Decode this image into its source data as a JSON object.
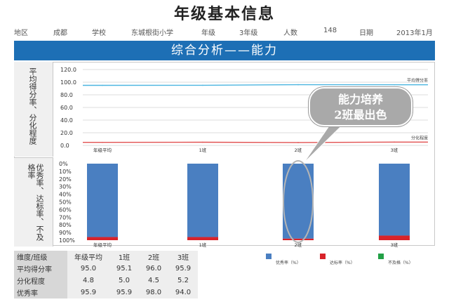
{
  "page": {
    "title": "年级基本信息"
  },
  "info": [
    {
      "label": "地区",
      "value": "成都"
    },
    {
      "label": "学校",
      "value": "东城根街小学"
    },
    {
      "label": "年级",
      "value": "3年级"
    },
    {
      "label": "人数",
      "value": "148"
    },
    {
      "label": "日期",
      "value": "2013年1月"
    }
  ],
  "banner": {
    "text": "综合分析——能力"
  },
  "side_labels": {
    "top": "平均得分率、分化程度",
    "bottom": "优秀率、达标率、不及格率"
  },
  "callout": {
    "line1": "能力培养",
    "line2": "2班最出色"
  },
  "colors": {
    "blue": "#4a7fc1",
    "red": "#d8232a",
    "green": "#22a046",
    "line_avg": "#4bb5e0",
    "line_div": "#e15050",
    "banner": "#1d6fb5"
  },
  "chart_data": [
    {
      "type": "line",
      "categories": [
        "年级平均",
        "1班",
        "2班",
        "3班"
      ],
      "ylim": [
        0,
        120
      ],
      "yticks": [
        "0.0",
        "20.0",
        "40.0",
        "60.0",
        "80.0",
        "100.0",
        "120.0"
      ],
      "series": [
        {
          "name": "平均得分率",
          "values": [
            95.0,
            95.1,
            96.0,
            95.9
          ]
        },
        {
          "name": "分化程度",
          "values": [
            4.8,
            5.0,
            4.5,
            5.2
          ]
        }
      ]
    },
    {
      "type": "bar",
      "stacked": true,
      "categories": [
        "年级平均",
        "1班",
        "2班",
        "3班"
      ],
      "ylim": [
        0,
        100
      ],
      "yticks": [
        "0%",
        "10%",
        "20%",
        "30%",
        "40%",
        "50%",
        "60%",
        "70%",
        "80%",
        "90%",
        "100%"
      ],
      "series": [
        {
          "name": "优秀率（%）",
          "values": [
            95.9,
            95.9,
            98.0,
            94.0
          ]
        },
        {
          "name": "达标率（%）",
          "values": [
            4.1,
            4.1,
            2.0,
            6.0
          ]
        },
        {
          "name": "不及格（%）",
          "values": [
            0,
            0,
            0,
            0
          ]
        }
      ]
    }
  ],
  "table": {
    "header": [
      "维度/班级",
      "年级平均",
      "1班",
      "2班",
      "3班"
    ],
    "rows": [
      [
        "平均得分率",
        "95.0",
        "95.1",
        "96.0",
        "95.9"
      ],
      [
        "分化程度",
        "4.8",
        "5.0",
        "4.5",
        "5.2"
      ],
      [
        "优秀率",
        "95.9",
        "95.9",
        "98.0",
        "94.0"
      ]
    ]
  }
}
